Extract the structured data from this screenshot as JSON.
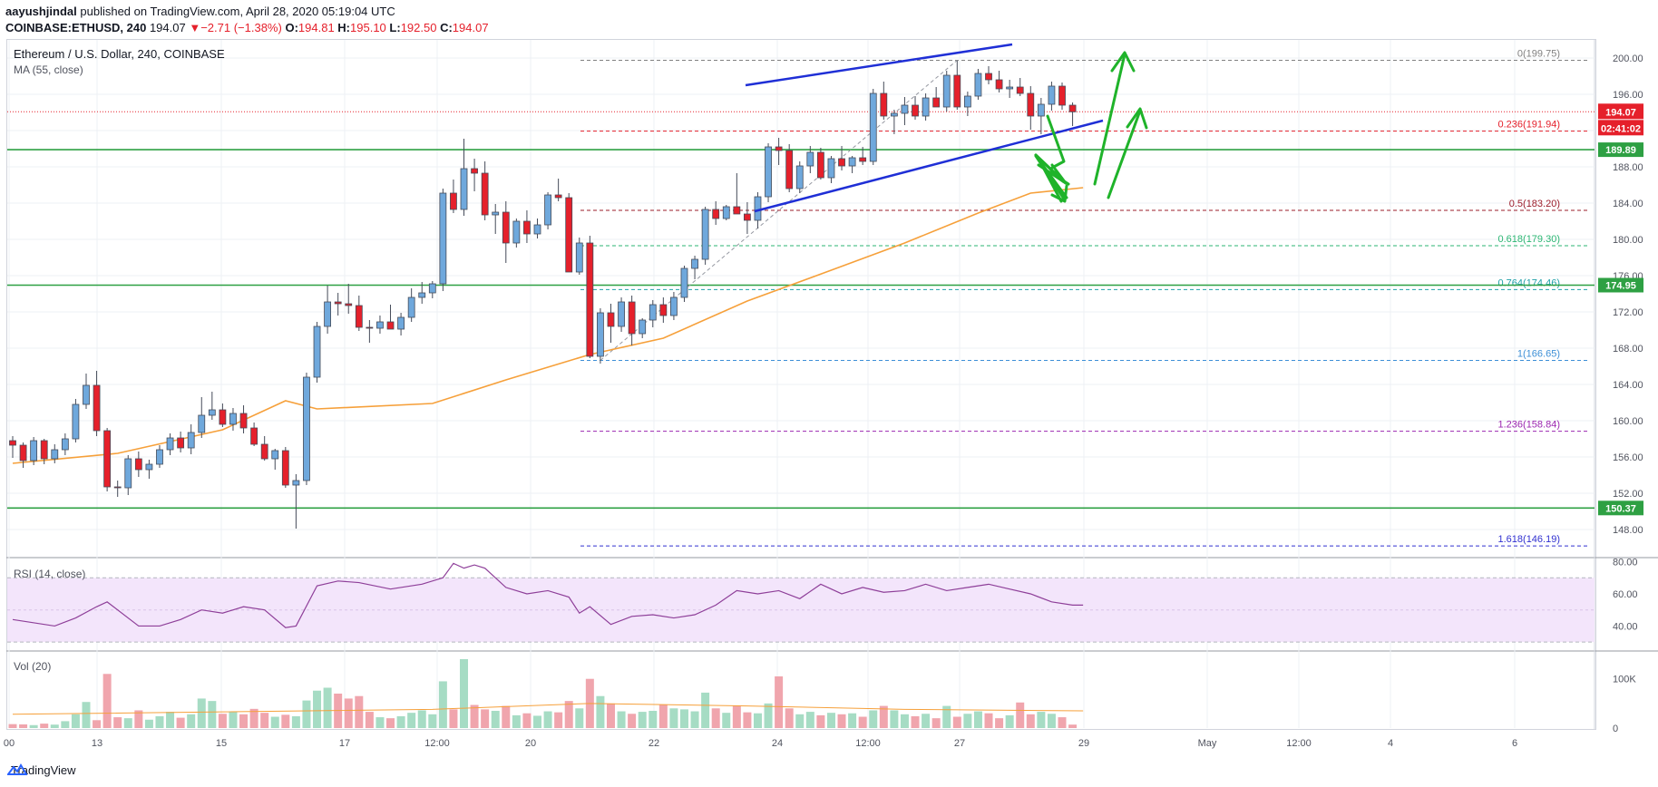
{
  "header": {
    "author": "aayushjindal",
    "published_text": "published on TradingView.com, April 28, 2020 05:19:04 UTC",
    "symbol_line": "COINBASE:ETHUSD, 240",
    "last": "194.07",
    "change_arrow": "▼",
    "change": "−2.71 (−1.38%)",
    "o_label": "O:",
    "o": "194.81",
    "h_label": "H:",
    "h": "195.10",
    "l_label": "L:",
    "l": "192.50",
    "c_label": "C:",
    "c": "194.07"
  },
  "footer": {
    "brand": "TradingView"
  },
  "colors": {
    "up": "#6fa8dc",
    "down": "#e5202b",
    "ma": "#f6a03a",
    "support": "#2ea043",
    "channel": "#1f2fd6",
    "arrow": "#1fb32a",
    "rsi": "#8e3f99"
  },
  "chart_data": [
    {
      "type": "candlestick",
      "title": "Ethereum / U.S. Dollar, 240, COINBASE",
      "indicator_label": "MA (55, close)",
      "ylim": [
        145,
        202
      ],
      "y_ticks": [
        "148.00",
        "152.00",
        "156.00",
        "160.00",
        "164.00",
        "168.00",
        "172.00",
        "176.00",
        "180.00",
        "184.00",
        "188.00",
        "192.00",
        "196.00",
        "200.00"
      ],
      "x_ticks": [
        "00",
        "13",
        "15",
        "17",
        "12:00",
        "20",
        "22",
        "24",
        "12:00",
        "27",
        "29",
        "May",
        "12:00",
        "4",
        "6"
      ],
      "ohlc": [
        [
          157.8,
          158.3,
          155.9,
          157.3
        ],
        [
          157.3,
          157.6,
          154.8,
          155.6
        ],
        [
          155.6,
          158.2,
          155.1,
          157.8
        ],
        [
          157.8,
          158.0,
          155.2,
          155.8
        ],
        [
          155.8,
          157.4,
          155.3,
          156.8
        ],
        [
          156.8,
          158.6,
          156.2,
          158.0
        ],
        [
          158.0,
          162.4,
          157.6,
          161.8
        ],
        [
          161.8,
          165.2,
          161.3,
          163.9
        ],
        [
          163.9,
          165.5,
          158.3,
          158.9
        ],
        [
          158.9,
          159.2,
          152.2,
          152.7
        ],
        [
          152.7,
          153.4,
          151.6,
          152.6
        ],
        [
          152.6,
          156.2,
          151.8,
          155.8
        ],
        [
          155.8,
          156.6,
          153.8,
          154.6
        ],
        [
          154.6,
          155.7,
          153.6,
          155.2
        ],
        [
          155.2,
          157.3,
          154.8,
          156.8
        ],
        [
          156.8,
          158.6,
          156.2,
          158.1
        ],
        [
          158.1,
          158.8,
          156.5,
          157.0
        ],
        [
          157.0,
          159.6,
          156.3,
          158.7
        ],
        [
          158.7,
          162.6,
          158.1,
          160.6
        ],
        [
          160.6,
          163.2,
          160.1,
          161.2
        ],
        [
          161.2,
          161.9,
          159.3,
          159.6
        ],
        [
          159.6,
          161.4,
          158.9,
          160.8
        ],
        [
          160.8,
          161.7,
          158.6,
          159.2
        ],
        [
          159.2,
          159.8,
          157.2,
          157.4
        ],
        [
          157.4,
          158.3,
          155.6,
          155.8
        ],
        [
          155.8,
          156.9,
          154.6,
          156.7
        ],
        [
          156.7,
          157.1,
          152.6,
          152.9
        ],
        [
          152.9,
          154.1,
          148.1,
          153.4
        ],
        [
          153.4,
          165.3,
          152.9,
          164.8
        ],
        [
          164.8,
          170.9,
          164.2,
          170.4
        ],
        [
          170.4,
          174.9,
          169.6,
          173.1
        ],
        [
          173.1,
          174.1,
          171.6,
          172.9
        ],
        [
          172.9,
          175.1,
          171.8,
          172.7
        ],
        [
          172.7,
          173.8,
          169.9,
          170.3
        ],
        [
          170.3,
          171.1,
          168.6,
          170.2
        ],
        [
          170.2,
          171.6,
          169.6,
          170.9
        ],
        [
          170.9,
          172.8,
          170.1,
          170.1
        ],
        [
          170.1,
          171.9,
          169.4,
          171.4
        ],
        [
          171.4,
          174.6,
          170.9,
          173.6
        ],
        [
          173.6,
          175.3,
          172.9,
          174.1
        ],
        [
          174.1,
          175.4,
          173.5,
          175.1
        ],
        [
          175.1,
          185.6,
          174.3,
          185.1
        ],
        [
          185.1,
          186.6,
          182.9,
          183.3
        ],
        [
          183.3,
          191.1,
          182.6,
          187.8
        ],
        [
          187.8,
          188.9,
          185.3,
          187.3
        ],
        [
          187.3,
          188.6,
          182.1,
          182.7
        ],
        [
          182.7,
          183.9,
          180.6,
          183.0
        ],
        [
          183.0,
          184.2,
          177.4,
          179.6
        ],
        [
          179.6,
          182.3,
          179.1,
          182.0
        ],
        [
          182.0,
          183.2,
          179.6,
          180.6
        ],
        [
          180.6,
          182.3,
          180.1,
          181.6
        ],
        [
          181.6,
          185.2,
          181.1,
          184.9
        ],
        [
          184.9,
          186.7,
          184.2,
          184.6
        ],
        [
          184.6,
          185.1,
          176.6,
          176.4
        ],
        [
          176.4,
          180.2,
          176.1,
          179.6
        ],
        [
          179.6,
          180.4,
          166.9,
          167.1
        ],
        [
          167.1,
          172.4,
          166.3,
          171.9
        ],
        [
          171.9,
          172.9,
          168.6,
          170.4
        ],
        [
          170.4,
          173.6,
          169.8,
          173.1
        ],
        [
          173.1,
          173.8,
          168.3,
          169.6
        ],
        [
          169.6,
          171.3,
          169.1,
          171.1
        ],
        [
          171.1,
          173.3,
          170.3,
          172.8
        ],
        [
          172.8,
          173.6,
          170.8,
          171.6
        ],
        [
          171.6,
          174.2,
          171.1,
          173.6
        ],
        [
          173.6,
          177.1,
          173.1,
          176.8
        ],
        [
          176.8,
          178.2,
          175.6,
          177.8
        ],
        [
          177.8,
          183.6,
          177.2,
          183.3
        ],
        [
          183.3,
          184.2,
          181.6,
          182.3
        ],
        [
          182.3,
          183.8,
          182.1,
          183.6
        ],
        [
          183.6,
          187.3,
          182.8,
          182.8
        ],
        [
          182.8,
          184.1,
          180.6,
          182.1
        ],
        [
          182.1,
          185.2,
          181.2,
          184.7
        ],
        [
          184.7,
          190.6,
          184.1,
          190.2
        ],
        [
          190.2,
          191.2,
          188.2,
          189.8
        ],
        [
          189.8,
          190.5,
          185.2,
          185.6
        ],
        [
          185.6,
          188.6,
          185.1,
          188.1
        ],
        [
          188.1,
          190.3,
          187.3,
          189.6
        ],
        [
          189.6,
          190.1,
          186.6,
          186.8
        ],
        [
          186.8,
          189.2,
          186.2,
          188.9
        ],
        [
          188.9,
          190.3,
          187.6,
          188.1
        ],
        [
          188.1,
          189.2,
          187.3,
          189.0
        ],
        [
          189.0,
          190.2,
          188.2,
          188.6
        ],
        [
          188.6,
          196.6,
          188.2,
          196.1
        ],
        [
          196.1,
          197.4,
          193.2,
          193.6
        ],
        [
          193.6,
          194.3,
          191.6,
          193.9
        ],
        [
          193.9,
          195.7,
          192.6,
          194.8
        ],
        [
          194.8,
          195.8,
          193.2,
          193.6
        ],
        [
          193.6,
          196.1,
          193.1,
          195.6
        ],
        [
          195.6,
          196.8,
          194.6,
          194.6
        ],
        [
          194.6,
          198.6,
          194.1,
          198.1
        ],
        [
          198.1,
          199.7,
          194.3,
          194.6
        ],
        [
          194.6,
          196.3,
          193.6,
          195.8
        ],
        [
          195.8,
          198.8,
          195.4,
          198.3
        ],
        [
          198.3,
          199.1,
          197.1,
          197.6
        ],
        [
          197.6,
          198.6,
          196.2,
          196.6
        ],
        [
          196.6,
          197.6,
          195.6,
          196.8
        ],
        [
          196.8,
          197.8,
          195.8,
          196.1
        ],
        [
          196.1,
          196.9,
          192.1,
          193.6
        ],
        [
          193.6,
          195.6,
          191.6,
          194.9
        ],
        [
          194.9,
          197.4,
          194.2,
          196.9
        ],
        [
          196.9,
          197.3,
          194.3,
          194.8
        ],
        [
          194.8,
          195.1,
          192.5,
          194.07
        ]
      ],
      "ma55": [
        [
          0,
          155.3
        ],
        [
          10,
          156.4
        ],
        [
          20,
          159.0
        ],
        [
          26,
          162.2
        ],
        [
          29,
          161.3
        ],
        [
          40,
          161.9
        ],
        [
          47,
          164.5
        ],
        [
          55,
          167.3
        ],
        [
          62,
          169.1
        ],
        [
          70,
          173.2
        ],
        [
          78,
          176.6
        ],
        [
          85,
          179.6
        ],
        [
          92,
          182.9
        ],
        [
          97,
          185.1
        ],
        [
          102,
          185.7
        ]
      ],
      "fib_levels": [
        {
          "ratio": "0",
          "price": 199.75,
          "label": "0(199.75)",
          "color": "#808080"
        },
        {
          "ratio": "0.236",
          "price": 191.94,
          "label": "0.236(191.94)",
          "color": "#e5202b"
        },
        {
          "ratio": "0.5",
          "price": 183.2,
          "label": "0.5(183.20)",
          "color": "#9b1c2a"
        },
        {
          "ratio": "0.618",
          "price": 179.3,
          "label": "0.618(179.30)",
          "color": "#2bb673"
        },
        {
          "ratio": "0.764",
          "price": 174.46,
          "label": "0.764(174.46)",
          "color": "#1fa0a8"
        },
        {
          "ratio": "1",
          "price": 166.65,
          "label": "1(166.65)",
          "color": "#3d8fd6"
        },
        {
          "ratio": "1.236",
          "price": 158.84,
          "label": "1.236(158.84)",
          "color": "#9c27b0"
        },
        {
          "ratio": "1.618",
          "price": 146.19,
          "label": "1.618(146.19)",
          "color": "#3030d0"
        }
      ],
      "support_levels": [
        {
          "price": 189.89,
          "label": "189.89"
        },
        {
          "price": 174.95,
          "label": "174.95"
        },
        {
          "price": 150.37,
          "label": "150.37"
        }
      ],
      "price_line": {
        "price": 194.07,
        "label": "194.07",
        "countdown": "02:41:02"
      }
    },
    {
      "type": "line",
      "title": "RSI (14, close)",
      "ylim": [
        25,
        82
      ],
      "y_ticks": [
        "80.00",
        "60.00",
        "40.00"
      ],
      "bands": [
        70,
        30
      ],
      "values": [
        [
          0,
          44
        ],
        [
          4,
          40
        ],
        [
          6,
          45
        ],
        [
          8,
          52
        ],
        [
          9,
          55
        ],
        [
          12,
          40
        ],
        [
          14,
          40
        ],
        [
          16,
          44
        ],
        [
          18,
          50
        ],
        [
          20,
          48
        ],
        [
          22,
          52
        ],
        [
          24,
          50
        ],
        [
          26,
          39
        ],
        [
          27,
          40
        ],
        [
          29,
          65
        ],
        [
          31,
          68
        ],
        [
          33,
          67
        ],
        [
          36,
          63
        ],
        [
          39,
          66
        ],
        [
          41,
          70
        ],
        [
          42,
          79
        ],
        [
          43,
          76
        ],
        [
          44,
          78
        ],
        [
          45,
          76
        ],
        [
          47,
          64
        ],
        [
          49,
          60
        ],
        [
          51,
          62
        ],
        [
          53,
          58
        ],
        [
          54,
          48
        ],
        [
          55,
          52
        ],
        [
          57,
          41
        ],
        [
          59,
          46
        ],
        [
          61,
          47
        ],
        [
          63,
          45
        ],
        [
          65,
          47
        ],
        [
          67,
          53
        ],
        [
          69,
          62
        ],
        [
          71,
          60
        ],
        [
          73,
          62
        ],
        [
          75,
          57
        ],
        [
          77,
          66
        ],
        [
          79,
          60
        ],
        [
          81,
          64
        ],
        [
          83,
          61
        ],
        [
          85,
          62
        ],
        [
          87,
          66
        ],
        [
          89,
          62
        ],
        [
          91,
          64
        ],
        [
          93,
          66
        ],
        [
          95,
          63
        ],
        [
          97,
          60
        ],
        [
          99,
          55
        ],
        [
          101,
          53
        ],
        [
          102,
          53
        ]
      ]
    },
    {
      "type": "bar",
      "title": "Vol (20)",
      "ylim": [
        0,
        140000
      ],
      "y_ticks": [
        "100K",
        "0"
      ],
      "values": [
        8000,
        7500,
        6000,
        9000,
        7000,
        14000,
        28000,
        53000,
        16000,
        110000,
        22000,
        20000,
        36000,
        17000,
        24000,
        33000,
        21000,
        28000,
        60000,
        55000,
        29000,
        34000,
        28000,
        39000,
        31000,
        23000,
        27000,
        24000,
        56000,
        76000,
        82000,
        70000,
        60000,
        65000,
        33000,
        22000,
        20000,
        24000,
        31000,
        36000,
        28000,
        95000,
        38000,
        140000,
        47000,
        38000,
        35000,
        45000,
        26000,
        30000,
        25000,
        34000,
        32000,
        55000,
        40000,
        100000,
        65000,
        50000,
        34000,
        29000,
        33000,
        35000,
        48000,
        40000,
        38000,
        34000,
        72000,
        40000,
        31000,
        46000,
        32000,
        30000,
        50000,
        105000,
        40000,
        28000,
        33000,
        26000,
        31000,
        28000,
        30000,
        23000,
        36000,
        45000,
        36000,
        28000,
        24000,
        29000,
        20000,
        45000,
        23000,
        29000,
        34000,
        30000,
        20000,
        26000,
        52000,
        28000,
        33000,
        29000,
        22000,
        7000
      ],
      "ma20": [
        [
          0,
          28000
        ],
        [
          20,
          33000
        ],
        [
          40,
          38000
        ],
        [
          55,
          50000
        ],
        [
          70,
          45000
        ],
        [
          85,
          38000
        ],
        [
          102,
          35000
        ]
      ]
    }
  ]
}
